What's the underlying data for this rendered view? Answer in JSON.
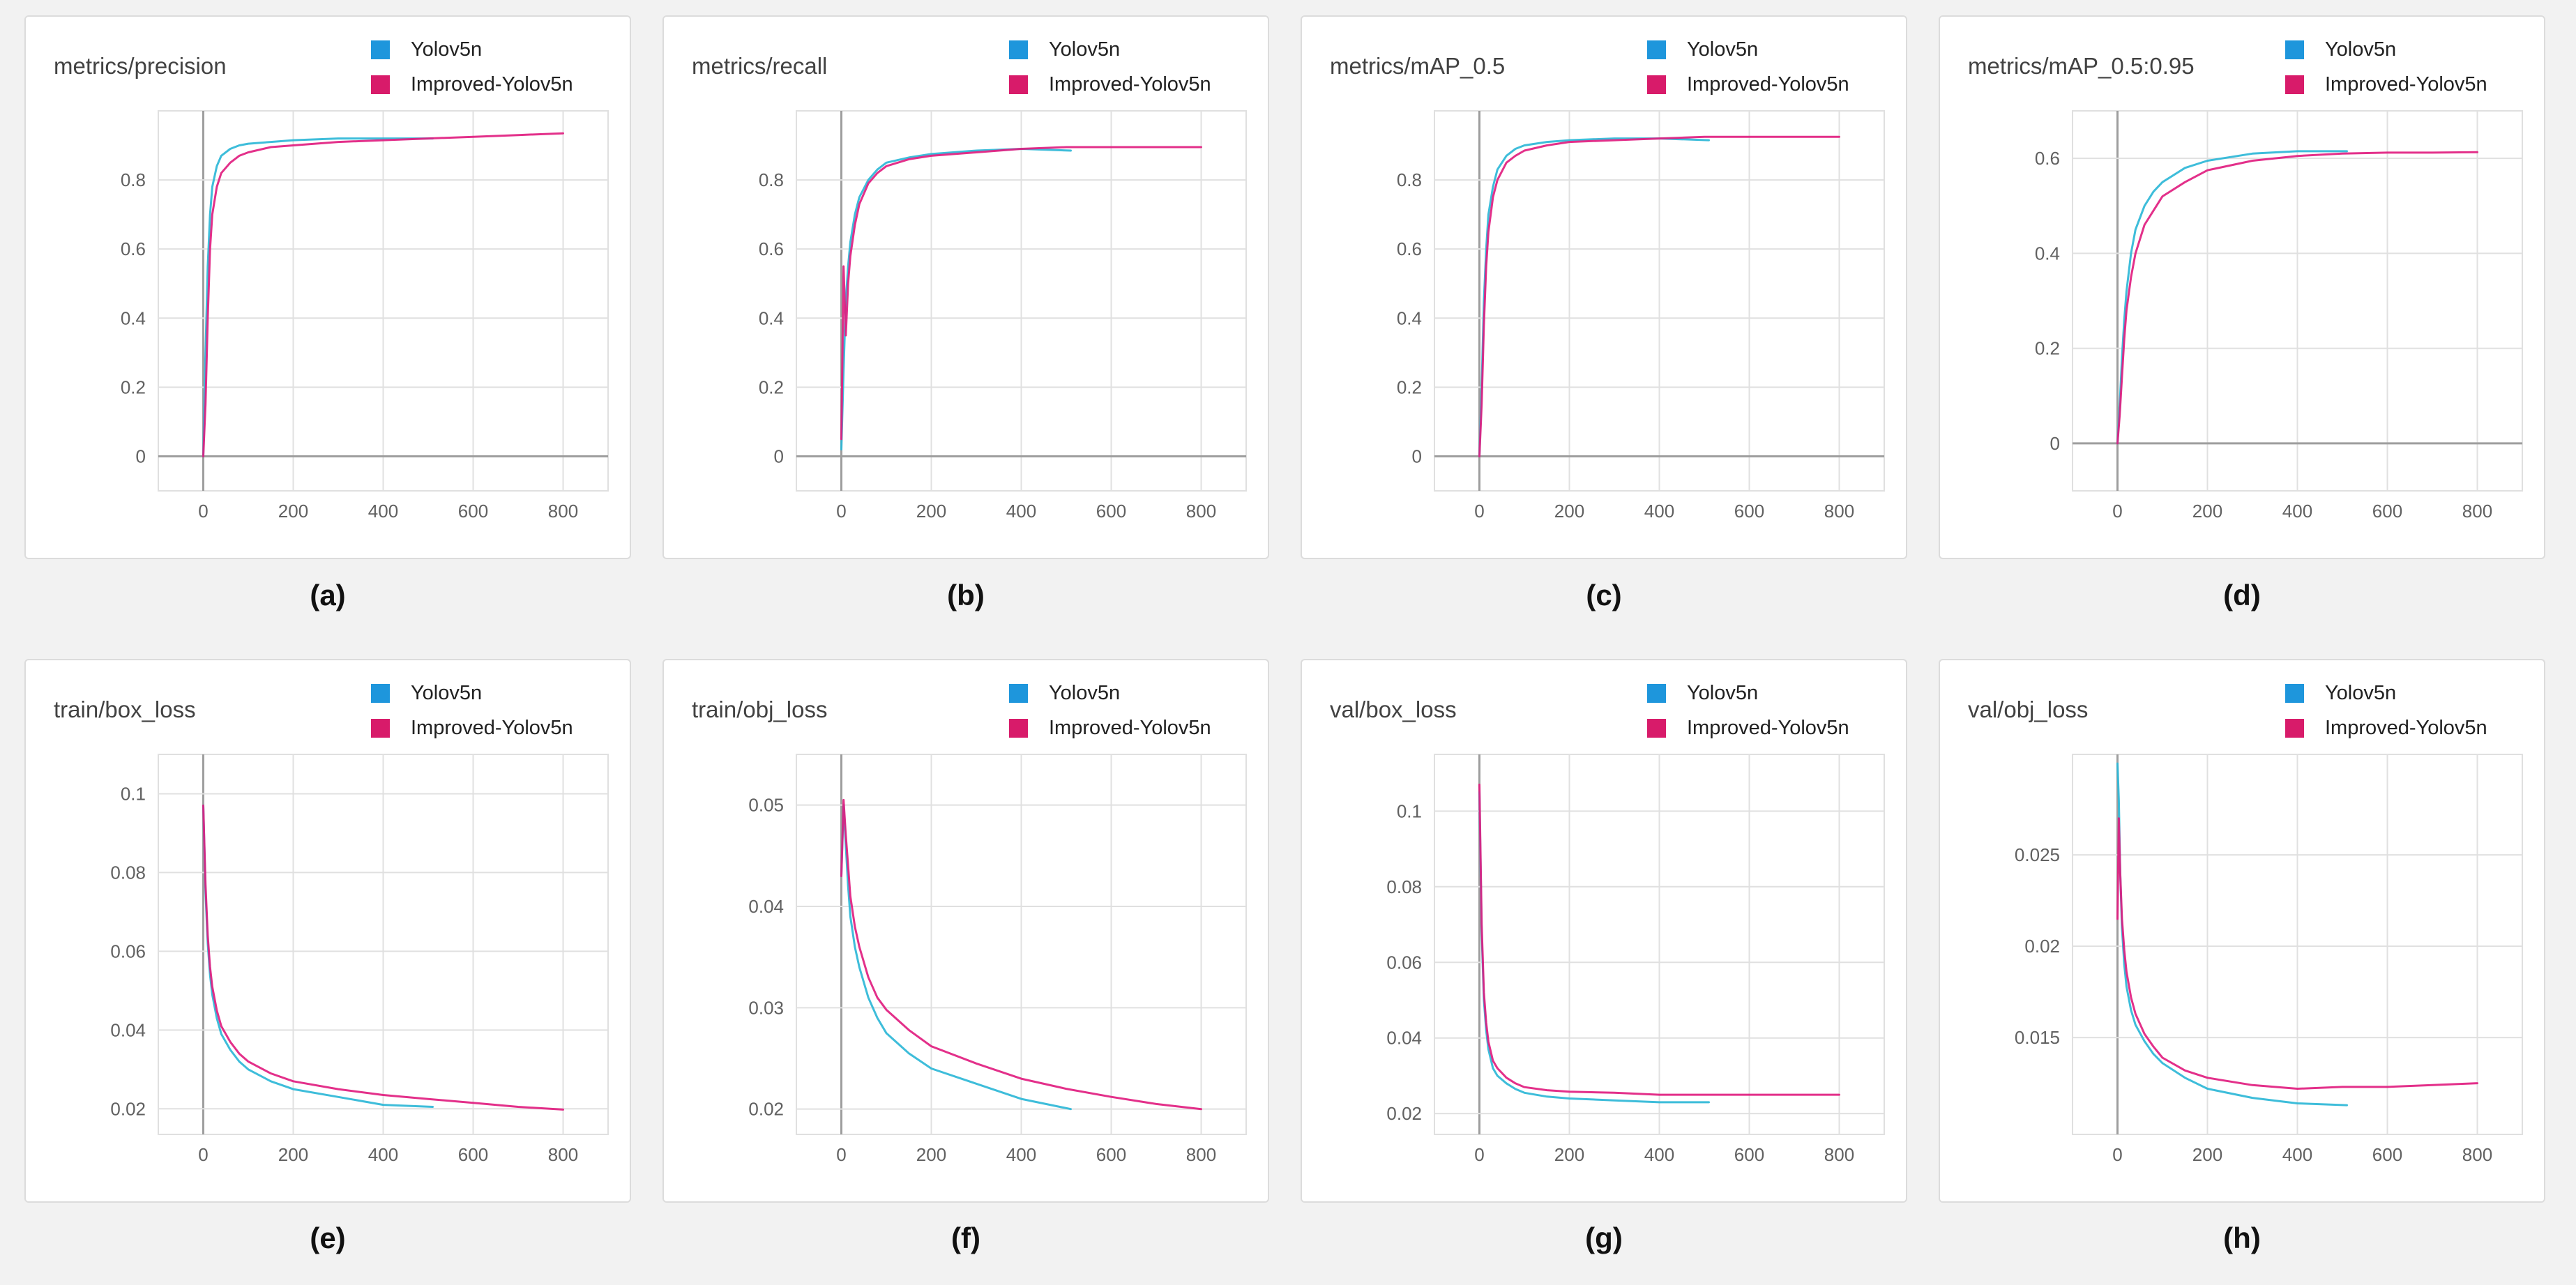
{
  "colors": {
    "yolov5n": "#29b6d6",
    "improved": "#e0197d",
    "legend_yolov5n": "#1e96dc",
    "legend_improved": "#d81b6a",
    "grid": "#e0e0e0",
    "zero_axis": "#9e9e9e"
  },
  "legend": [
    "Yolov5n",
    "Improved-Yolov5n"
  ],
  "chart_data": [
    {
      "id": "a",
      "caption": "(a)",
      "type": "line",
      "title": "metrics/precision",
      "xlabel": "",
      "ylabel": "",
      "xlim": [
        -100,
        900
      ],
      "ylim": [
        -0.1,
        1.0
      ],
      "xticks": [
        0,
        200,
        400,
        600,
        800
      ],
      "yticks": [
        0,
        0.2,
        0.4,
        0.6,
        0.8
      ],
      "yticklabels": [
        "0",
        "0.2",
        "0.4",
        "0.6",
        "0.8"
      ],
      "series": [
        {
          "name": "Yolov5n",
          "x": [
            0,
            5,
            10,
            15,
            20,
            30,
            40,
            60,
            80,
            100,
            150,
            200,
            300,
            400,
            510
          ],
          "y": [
            0.0,
            0.3,
            0.55,
            0.7,
            0.78,
            0.84,
            0.87,
            0.89,
            0.9,
            0.905,
            0.91,
            0.915,
            0.92,
            0.92,
            0.92
          ]
        },
        {
          "name": "Improved-Yolov5n",
          "x": [
            0,
            5,
            10,
            15,
            20,
            30,
            40,
            60,
            80,
            100,
            150,
            200,
            300,
            400,
            500,
            600,
            700,
            800
          ],
          "y": [
            0.0,
            0.15,
            0.4,
            0.6,
            0.7,
            0.78,
            0.82,
            0.85,
            0.87,
            0.88,
            0.895,
            0.9,
            0.91,
            0.915,
            0.92,
            0.925,
            0.93,
            0.935
          ]
        }
      ]
    },
    {
      "id": "b",
      "caption": "(b)",
      "type": "line",
      "title": "metrics/recall",
      "xlabel": "",
      "ylabel": "",
      "xlim": [
        -100,
        900
      ],
      "ylim": [
        -0.1,
        1.0
      ],
      "xticks": [
        0,
        200,
        400,
        600,
        800
      ],
      "yticks": [
        0,
        0.2,
        0.4,
        0.6,
        0.8
      ],
      "yticklabels": [
        "0",
        "0.2",
        "0.4",
        "0.6",
        "0.8"
      ],
      "series": [
        {
          "name": "Yolov5n",
          "x": [
            0,
            5,
            10,
            15,
            20,
            30,
            40,
            60,
            80,
            100,
            150,
            200,
            300,
            400,
            510
          ],
          "y": [
            0.02,
            0.25,
            0.45,
            0.55,
            0.62,
            0.7,
            0.75,
            0.8,
            0.83,
            0.85,
            0.865,
            0.875,
            0.885,
            0.89,
            0.885
          ]
        },
        {
          "name": "Improved-Yolov5n",
          "x": [
            0,
            5,
            10,
            15,
            20,
            30,
            40,
            60,
            80,
            100,
            150,
            200,
            300,
            400,
            500,
            600,
            700,
            800
          ],
          "y": [
            0.05,
            0.55,
            0.35,
            0.5,
            0.58,
            0.67,
            0.73,
            0.79,
            0.82,
            0.84,
            0.86,
            0.87,
            0.88,
            0.89,
            0.895,
            0.895,
            0.895,
            0.895
          ]
        }
      ]
    },
    {
      "id": "c",
      "caption": "(c)",
      "type": "line",
      "title": "metrics/mAP_0.5",
      "xlabel": "",
      "ylabel": "",
      "xlim": [
        -100,
        900
      ],
      "ylim": [
        -0.1,
        1.0
      ],
      "xticks": [
        0,
        200,
        400,
        600,
        800
      ],
      "yticks": [
        0,
        0.2,
        0.4,
        0.6,
        0.8
      ],
      "yticklabels": [
        "0",
        "0.2",
        "0.4",
        "0.6",
        "0.8"
      ],
      "series": [
        {
          "name": "Yolov5n",
          "x": [
            0,
            5,
            10,
            15,
            20,
            30,
            40,
            60,
            80,
            100,
            150,
            200,
            300,
            400,
            510
          ],
          "y": [
            0.0,
            0.2,
            0.45,
            0.6,
            0.7,
            0.78,
            0.83,
            0.87,
            0.89,
            0.9,
            0.91,
            0.915,
            0.92,
            0.92,
            0.915
          ]
        },
        {
          "name": "Improved-Yolov5n",
          "x": [
            0,
            5,
            10,
            15,
            20,
            30,
            40,
            60,
            80,
            100,
            150,
            200,
            300,
            400,
            500,
            600,
            700,
            800
          ],
          "y": [
            0.0,
            0.15,
            0.38,
            0.55,
            0.65,
            0.75,
            0.8,
            0.85,
            0.87,
            0.885,
            0.9,
            0.91,
            0.915,
            0.92,
            0.925,
            0.925,
            0.925,
            0.925
          ]
        }
      ]
    },
    {
      "id": "d",
      "caption": "(d)",
      "type": "line",
      "title": "metrics/mAP_0.5:0.95",
      "xlabel": "",
      "ylabel": "",
      "xlim": [
        -100,
        900
      ],
      "ylim": [
        -0.1,
        0.7
      ],
      "xticks": [
        0,
        200,
        400,
        600,
        800
      ],
      "yticks": [
        0,
        0.2,
        0.4,
        0.6
      ],
      "yticklabels": [
        "0",
        "0.2",
        "0.4",
        "0.6"
      ],
      "series": [
        {
          "name": "Yolov5n",
          "x": [
            0,
            5,
            10,
            15,
            20,
            30,
            40,
            60,
            80,
            100,
            150,
            200,
            300,
            400,
            510
          ],
          "y": [
            0.0,
            0.08,
            0.18,
            0.26,
            0.32,
            0.4,
            0.45,
            0.5,
            0.53,
            0.55,
            0.58,
            0.595,
            0.61,
            0.615,
            0.615
          ]
        },
        {
          "name": "Improved-Yolov5n",
          "x": [
            0,
            5,
            10,
            15,
            20,
            30,
            40,
            60,
            80,
            100,
            150,
            200,
            300,
            400,
            500,
            600,
            700,
            800
          ],
          "y": [
            0.0,
            0.06,
            0.14,
            0.22,
            0.28,
            0.35,
            0.4,
            0.46,
            0.49,
            0.52,
            0.55,
            0.575,
            0.595,
            0.605,
            0.61,
            0.612,
            0.612,
            0.613
          ]
        }
      ]
    },
    {
      "id": "e",
      "caption": "(e)",
      "type": "line",
      "title": "train/box_loss",
      "xlabel": "",
      "ylabel": "",
      "xlim": [
        -100,
        900
      ],
      "ylim": [
        0.0135,
        0.11
      ],
      "xticks": [
        0,
        200,
        400,
        600,
        800
      ],
      "yticks": [
        0.02,
        0.04,
        0.06,
        0.08,
        0.1
      ],
      "yticklabels": [
        "0.02",
        "0.04",
        "0.06",
        "0.08",
        "0.1"
      ],
      "series": [
        {
          "name": "Yolov5n",
          "x": [
            0,
            5,
            10,
            15,
            20,
            30,
            40,
            60,
            80,
            100,
            150,
            200,
            300,
            400,
            510
          ],
          "y": [
            0.097,
            0.075,
            0.062,
            0.054,
            0.049,
            0.043,
            0.039,
            0.035,
            0.032,
            0.03,
            0.027,
            0.025,
            0.023,
            0.021,
            0.0205
          ]
        },
        {
          "name": "Improved-Yolov5n",
          "x": [
            0,
            5,
            10,
            15,
            20,
            30,
            40,
            60,
            80,
            100,
            150,
            200,
            300,
            400,
            500,
            600,
            700,
            800
          ],
          "y": [
            0.097,
            0.077,
            0.064,
            0.056,
            0.051,
            0.045,
            0.041,
            0.037,
            0.034,
            0.032,
            0.029,
            0.027,
            0.025,
            0.0235,
            0.0225,
            0.0215,
            0.0205,
            0.0198
          ]
        }
      ]
    },
    {
      "id": "f",
      "caption": "(f)",
      "type": "line",
      "title": "train/obj_loss",
      "xlabel": "",
      "ylabel": "",
      "xlim": [
        -100,
        900
      ],
      "ylim": [
        0.0175,
        0.055
      ],
      "xticks": [
        0,
        200,
        400,
        600,
        800
      ],
      "yticks": [
        0.02,
        0.03,
        0.04,
        0.05
      ],
      "yticklabels": [
        "0.02",
        "0.03",
        "0.04",
        "0.05"
      ],
      "series": [
        {
          "name": "Yolov5n",
          "x": [
            0,
            5,
            10,
            15,
            20,
            30,
            40,
            60,
            80,
            100,
            150,
            200,
            300,
            400,
            510
          ],
          "y": [
            0.043,
            0.05,
            0.046,
            0.042,
            0.039,
            0.036,
            0.034,
            0.031,
            0.029,
            0.0275,
            0.0255,
            0.024,
            0.0225,
            0.021,
            0.02
          ]
        },
        {
          "name": "Improved-Yolov5n",
          "x": [
            0,
            5,
            10,
            15,
            20,
            30,
            40,
            60,
            80,
            100,
            150,
            200,
            300,
            400,
            500,
            600,
            700,
            800
          ],
          "y": [
            0.043,
            0.0505,
            0.047,
            0.044,
            0.041,
            0.038,
            0.036,
            0.033,
            0.031,
            0.0298,
            0.0278,
            0.0262,
            0.0245,
            0.023,
            0.022,
            0.0212,
            0.0205,
            0.02
          ]
        }
      ]
    },
    {
      "id": "g",
      "caption": "(g)",
      "type": "line",
      "title": "val/box_loss",
      "xlabel": "",
      "ylabel": "",
      "xlim": [
        -100,
        900
      ],
      "ylim": [
        0.0145,
        0.115
      ],
      "xticks": [
        0,
        200,
        400,
        600,
        800
      ],
      "yticks": [
        0.02,
        0.04,
        0.06,
        0.08,
        0.1
      ],
      "yticklabels": [
        "0.02",
        "0.04",
        "0.06",
        "0.08",
        "0.1"
      ],
      "series": [
        {
          "name": "Yolov5n",
          "x": [
            0,
            5,
            10,
            15,
            20,
            30,
            40,
            60,
            80,
            100,
            150,
            200,
            300,
            400,
            510
          ],
          "y": [
            0.105,
            0.068,
            0.05,
            0.042,
            0.037,
            0.032,
            0.03,
            0.028,
            0.0265,
            0.0255,
            0.0245,
            0.024,
            0.0235,
            0.023,
            0.023
          ]
        },
        {
          "name": "Improved-Yolov5n",
          "x": [
            0,
            5,
            10,
            15,
            20,
            30,
            40,
            60,
            80,
            100,
            150,
            200,
            300,
            400,
            500,
            600,
            700,
            800
          ],
          "y": [
            0.107,
            0.07,
            0.052,
            0.044,
            0.039,
            0.034,
            0.032,
            0.0295,
            0.028,
            0.027,
            0.0262,
            0.0258,
            0.0255,
            0.025,
            0.025,
            0.025,
            0.025,
            0.025
          ]
        }
      ]
    },
    {
      "id": "h",
      "caption": "(h)",
      "type": "line",
      "title": "val/obj_loss",
      "xlabel": "",
      "ylabel": "",
      "xlim": [
        -100,
        900
      ],
      "ylim": [
        0.0097,
        0.0305
      ],
      "xticks": [
        0,
        200,
        400,
        600,
        800
      ],
      "yticks": [
        0.015,
        0.02,
        0.025
      ],
      "yticklabels": [
        "0.015",
        "0.02",
        "0.025"
      ],
      "series": [
        {
          "name": "Yolov5n",
          "x": [
            0,
            3,
            6,
            10,
            15,
            20,
            30,
            40,
            60,
            80,
            100,
            150,
            200,
            300,
            400,
            510
          ],
          "y": [
            0.03,
            0.028,
            0.024,
            0.021,
            0.019,
            0.0178,
            0.0165,
            0.0157,
            0.0148,
            0.0141,
            0.0136,
            0.0128,
            0.0122,
            0.0117,
            0.0114,
            0.0113
          ]
        },
        {
          "name": "Improved-Yolov5n",
          "x": [
            0,
            3,
            6,
            10,
            15,
            20,
            30,
            40,
            60,
            80,
            100,
            150,
            200,
            300,
            400,
            500,
            600,
            700,
            800
          ],
          "y": [
            0.0215,
            0.027,
            0.024,
            0.0215,
            0.0198,
            0.0186,
            0.0172,
            0.0163,
            0.0152,
            0.0145,
            0.0139,
            0.0132,
            0.0128,
            0.0124,
            0.0122,
            0.0123,
            0.0123,
            0.0124,
            0.0125
          ]
        }
      ]
    }
  ]
}
